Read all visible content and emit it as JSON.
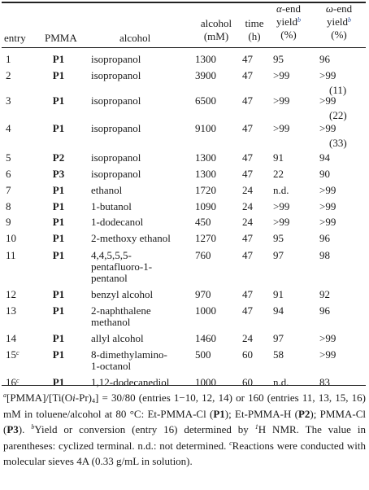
{
  "headers": {
    "entry": "entry",
    "pmma": "PMMA",
    "alcohol": "alcohol",
    "conc_line1": "alcohol",
    "conc_line2": "(mM)",
    "time_line1": "time",
    "time_line2": "(h)",
    "alpha_prefix": "α",
    "alpha_line1_rest": "-end",
    "alpha_line2": "yield",
    "alpha_note": "b",
    "alpha_line3": "(%)",
    "omega_prefix": "ω",
    "omega_line1_rest": "-end",
    "omega_line2": "yield",
    "omega_note": "b",
    "omega_line3": "(%)"
  },
  "rows": [
    {
      "entry": "1",
      "note": "",
      "pmma": "P1",
      "alcohol": [
        "isopropanol"
      ],
      "conc": "1300",
      "time": "47",
      "alpha": "95",
      "omega": "96",
      "cyclized": ""
    },
    {
      "entry": "2",
      "note": "",
      "pmma": "P1",
      "alcohol": [
        "isopropanol"
      ],
      "conc": "3900",
      "time": "47",
      "alpha": ">99",
      "omega": ">99",
      "cyclized": "(11)"
    },
    {
      "entry": "3",
      "note": "",
      "pmma": "P1",
      "alcohol": [
        "isopropanol"
      ],
      "conc": "6500",
      "time": "47",
      "alpha": ">99",
      "omega": ">99",
      "cyclized": "(22)"
    },
    {
      "entry": "4",
      "note": "",
      "pmma": "P1",
      "alcohol": [
        "isopropanol"
      ],
      "conc": "9100",
      "time": "47",
      "alpha": ">99",
      "omega": ">99",
      "cyclized": "(33)"
    },
    {
      "entry": "5",
      "note": "",
      "pmma": "P2",
      "alcohol": [
        "isopropanol"
      ],
      "conc": "1300",
      "time": "47",
      "alpha": "91",
      "omega": "94",
      "cyclized": ""
    },
    {
      "entry": "6",
      "note": "",
      "pmma": "P3",
      "alcohol": [
        "isopropanol"
      ],
      "conc": "1300",
      "time": "47",
      "alpha": "22",
      "omega": "90",
      "cyclized": ""
    },
    {
      "entry": "7",
      "note": "",
      "pmma": "P1",
      "alcohol": [
        "ethanol"
      ],
      "conc": "1720",
      "time": "24",
      "alpha": "n.d.",
      "omega": ">99",
      "cyclized": ""
    },
    {
      "entry": "8",
      "note": "",
      "pmma": "P1",
      "alcohol": [
        "1-butanol"
      ],
      "conc": "1090",
      "time": "24",
      "alpha": ">99",
      "omega": ">99",
      "cyclized": ""
    },
    {
      "entry": "9",
      "note": "",
      "pmma": "P1",
      "alcohol": [
        "1-dodecanol"
      ],
      "conc": "450",
      "time": "24",
      "alpha": ">99",
      "omega": ">99",
      "cyclized": ""
    },
    {
      "entry": "10",
      "note": "",
      "pmma": "P1",
      "alcohol": [
        "2-methoxy ethanol"
      ],
      "conc": "1270",
      "time": "47",
      "alpha": "95",
      "omega": "96",
      "cyclized": ""
    },
    {
      "entry": "11",
      "note": "",
      "pmma": "P1",
      "alcohol": [
        "4,4,5,5,5-",
        "pentafluoro-1-",
        "pentanol"
      ],
      "conc": "760",
      "time": "47",
      "alpha": "97",
      "omega": "98",
      "cyclized": ""
    },
    {
      "entry": "12",
      "note": "",
      "pmma": "P1",
      "alcohol": [
        "benzyl alcohol"
      ],
      "conc": "970",
      "time": "47",
      "alpha": "91",
      "omega": "92",
      "cyclized": ""
    },
    {
      "entry": "13",
      "note": "",
      "pmma": "P1",
      "alcohol": [
        "2-naphthalene",
        "methanol"
      ],
      "conc": "1000",
      "time": "47",
      "alpha": "94",
      "omega": "96",
      "cyclized": ""
    },
    {
      "entry": "14",
      "note": "",
      "pmma": "P1",
      "alcohol": [
        "allyl alcohol"
      ],
      "conc": "1460",
      "time": "24",
      "alpha": "97",
      "omega": ">99",
      "cyclized": ""
    },
    {
      "entry": "15",
      "note": "c",
      "pmma": "P1",
      "alcohol": [
        "8-dimethylamino-",
        "1-octanol"
      ],
      "conc": "500",
      "time": "60",
      "alpha": "58",
      "omega": ">99",
      "cyclized": ""
    },
    {
      "entry": "16",
      "note": "c",
      "pmma": "P1",
      "alcohol": [
        "1,12-dodecanediol"
      ],
      "conc": "1000",
      "time": "60",
      "alpha": "n.d.",
      "omega": "83",
      "cyclized": ""
    }
  ],
  "footnote": {
    "a_mark": "a",
    "a_1": "[PMMA]/[Ti(O",
    "a_i": "i",
    "a_2": "-Pr)",
    "a_sub": "4",
    "a_3": "] = 30/80 (entries 1−10, 12, 14) or 160 (entries 11, 13, 15, 16) mM in toluene/alcohol at 80 °C: Et-PMMA-Cl (",
    "p1": "P1",
    "a_4": "); Et-PMMA-H (",
    "p2": "P2",
    "a_5": "); PMMA-Cl (",
    "p3": "P3",
    "a_6": "). ",
    "b_mark": "b",
    "b_1": "Yield or conversion (entry 16) determined by ",
    "b_sup": "1",
    "b_2": "H NMR. The value in parentheses: cyclized terminal. n.d.: not determined. ",
    "c_mark": "c",
    "c_1": "Reactions were conducted with molecular sieves 4A (0.33 g/mL in solution)."
  }
}
